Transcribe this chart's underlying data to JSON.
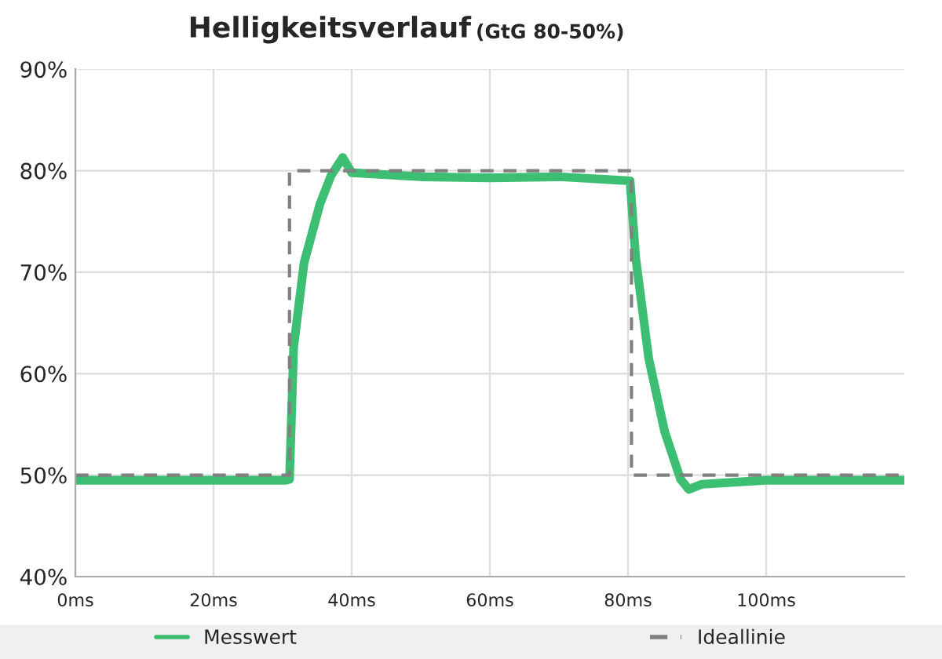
{
  "chart_data": {
    "type": "line",
    "title": "Helligkeitsverlauf",
    "subtitle": "(GtG 80-50%)",
    "xlim": [
      0,
      120
    ],
    "ylim": [
      40,
      90
    ],
    "xticks": [
      {
        "value": 0,
        "label": "0ms"
      },
      {
        "value": 20,
        "label": "20ms"
      },
      {
        "value": 40,
        "label": "40ms"
      },
      {
        "value": 60,
        "label": "60ms"
      },
      {
        "value": 80,
        "label": "80ms"
      },
      {
        "value": 100,
        "label": "100ms"
      }
    ],
    "yticks": [
      {
        "value": 40,
        "label": "40%"
      },
      {
        "value": 50,
        "label": "50%"
      },
      {
        "value": 60,
        "label": "60%"
      },
      {
        "value": 70,
        "label": "70%"
      },
      {
        "value": 80,
        "label": "80%"
      },
      {
        "value": 90,
        "label": "90%"
      }
    ],
    "grid": true,
    "legend": "bottom",
    "series": [
      {
        "name": "Messwert",
        "color": "#3cbf72",
        "line_style": "solid",
        "x": [
          0,
          10,
          20,
          30.5,
          31,
          31.6,
          33.1,
          35.4,
          37,
          38.7,
          40,
          50,
          60,
          70,
          80.3,
          81.1,
          83,
          85.3,
          87.6,
          88.8,
          90.7,
          100,
          110,
          120
        ],
        "values": [
          49.5,
          49.5,
          49.5,
          49.5,
          49.6,
          62.6,
          70.9,
          76.7,
          79.5,
          81.3,
          79.8,
          79.4,
          79.3,
          79.4,
          79,
          71.5,
          61.5,
          54.3,
          49.6,
          48.6,
          49.1,
          49.5,
          49.5,
          49.5
        ]
      },
      {
        "name": "Ideallinie",
        "color": "#808080",
        "line_style": "dashed",
        "x": [
          0,
          31,
          31,
          80.5,
          80.5,
          120
        ],
        "values": [
          50,
          50,
          80,
          80,
          50,
          50
        ]
      }
    ]
  }
}
